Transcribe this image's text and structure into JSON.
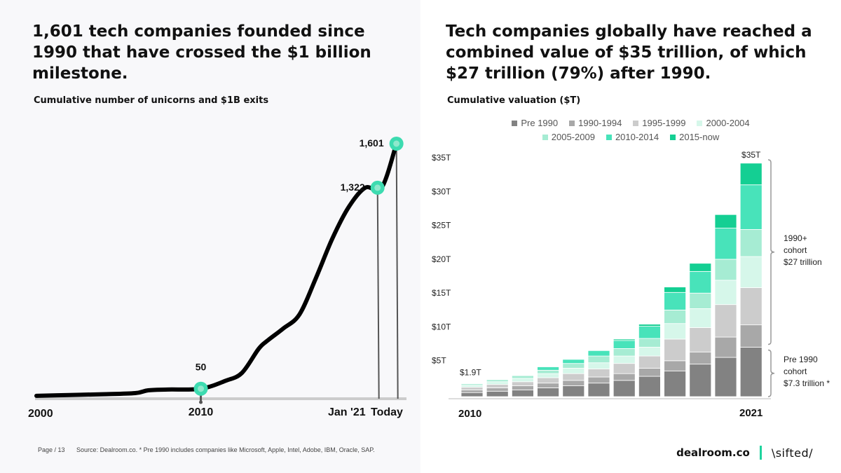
{
  "left": {
    "headline": "1,601 tech companies founded since 1990 that have crossed the $1 billion milestone.",
    "subhead": "Cumulative number of unicorns and $1B exits"
  },
  "right": {
    "headline": "Tech companies globally have reached a combined value of $35 trillion, of which $27 trillion (79%) after 1990.",
    "subhead": "Cumulative valuation ($T)"
  },
  "footer": {
    "page": "Page / 13",
    "source": "Source: Dealroom.co. * Pre 1990 includes companies like Microsoft, Apple, Intel, Adobe, IBM, Oracle, SAP."
  },
  "brands": {
    "dealroom": "dealroom.co",
    "sifted": "\\sifted/"
  },
  "chart_data": [
    {
      "type": "line",
      "title": "Cumulative number of unicorns and $1B exits",
      "x": [
        2000,
        2002,
        2004,
        2006,
        2006.8,
        2008,
        2010,
        2011.5,
        2012.5,
        2013.5,
        2014,
        2015,
        2016,
        2017,
        2018,
        2019,
        2020,
        2021,
        2021.9
      ],
      "y": [
        5,
        10,
        15,
        22,
        40,
        45,
        50,
        100,
        150,
        300,
        350,
        430,
        520,
        750,
        1000,
        1200,
        1322,
        1322,
        1601
      ],
      "x_tick_labels": [
        "2000",
        "2010",
        "Jan '21",
        "Today"
      ],
      "annotations": [
        {
          "label": "50",
          "x": 2010,
          "y": 50
        },
        {
          "label": "1,322",
          "x": 2020.75,
          "y": 1322
        },
        {
          "label": "1,601",
          "x": 2021.9,
          "y": 1601
        }
      ],
      "xlim": [
        2000,
        2022
      ],
      "ylim": [
        0,
        1601
      ],
      "line_color": "#000000",
      "marker_color": "#3ddbb0"
    },
    {
      "type": "bar",
      "stacked": true,
      "categories": [
        "2010",
        "2011",
        "2012",
        "2013",
        "2014",
        "2015",
        "2016",
        "2017",
        "2018",
        "2019",
        "2020",
        "2021"
      ],
      "x_tick_labels": [
        "2010",
        "2021"
      ],
      "y_tick_labels": [
        "$5T",
        "$10T",
        "$15T",
        "$20T",
        "$25T",
        "$30T",
        "$35T"
      ],
      "ylim": [
        0,
        35
      ],
      "series": [
        {
          "name": "Pre 1990",
          "color": "#828282",
          "values": [
            0.6,
            0.8,
            1.0,
            1.3,
            1.6,
            2.0,
            2.4,
            3.0,
            3.8,
            4.8,
            5.8,
            7.3
          ]
        },
        {
          "name": "1990-1994",
          "color": "#a8a8a8",
          "values": [
            0.4,
            0.5,
            0.6,
            0.7,
            0.8,
            0.9,
            1.0,
            1.2,
            1.5,
            1.8,
            3.0,
            3.3
          ]
        },
        {
          "name": "1995-1999",
          "color": "#cccccc",
          "values": [
            0.4,
            0.5,
            0.6,
            0.8,
            1.0,
            1.2,
            1.5,
            1.8,
            3.2,
            3.6,
            4.8,
            5.5
          ]
        },
        {
          "name": "2000-2004",
          "color": "#d6f7ea",
          "values": [
            0.3,
            0.4,
            0.5,
            0.6,
            0.8,
            0.9,
            1.1,
            1.3,
            2.3,
            2.8,
            3.6,
            4.6
          ]
        },
        {
          "name": "2005-2009",
          "color": "#a6ecd3",
          "values": [
            0.2,
            0.3,
            0.4,
            0.5,
            0.7,
            1.0,
            1.1,
            1.3,
            2.0,
            2.3,
            3.1,
            4.0
          ]
        },
        {
          "name": "2010-2014",
          "color": "#48e3ba",
          "values": [
            0.0,
            0.0,
            0.0,
            0.5,
            0.6,
            0.8,
            1.2,
            1.8,
            2.6,
            3.2,
            4.6,
            6.6
          ]
        },
        {
          "name": "2015-now",
          "color": "#14cf93",
          "values": [
            0.0,
            0.0,
            0.0,
            0.0,
            0.0,
            0.0,
            0.2,
            0.3,
            0.8,
            1.2,
            2.0,
            3.2
          ]
        }
      ],
      "annotations": [
        {
          "label": "$1.9T",
          "category": "2010"
        },
        {
          "label": "$35T",
          "category": "2021"
        }
      ],
      "brackets": [
        {
          "label_lines": [
            "1990+",
            "cohort",
            "$27 trillion"
          ],
          "from": 7.3,
          "to": 35
        },
        {
          "label_lines": [
            "Pre 1990",
            "cohort",
            "$7.3 trillion *"
          ],
          "from": 0,
          "to": 7.3
        }
      ],
      "grid": false,
      "legend_position": "top"
    }
  ]
}
